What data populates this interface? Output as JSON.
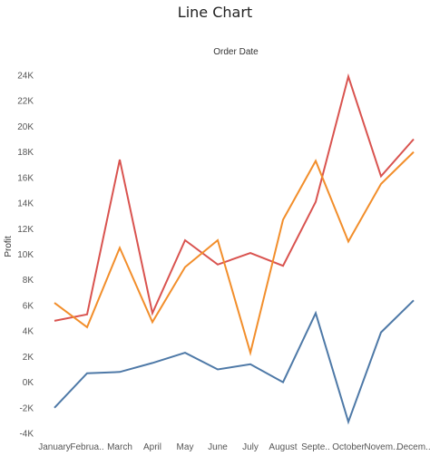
{
  "chart_data": {
    "type": "line",
    "title": "Line Chart",
    "subtitle": "Order Date",
    "xlabel": "",
    "ylabel": "Profit",
    "categories": [
      "January",
      "Februa..",
      "March",
      "April",
      "May",
      "June",
      "July",
      "August",
      "Septe..",
      "October",
      "Novem..",
      "Decem.."
    ],
    "ylim": [
      -4000,
      25000
    ],
    "yticks": [
      -4000,
      -2000,
      0,
      2000,
      4000,
      6000,
      8000,
      10000,
      12000,
      14000,
      16000,
      18000,
      20000,
      22000,
      24000
    ],
    "ytick_labels": [
      "-4K",
      "-2K",
      "0K",
      "2K",
      "4K",
      "6K",
      "8K",
      "10K",
      "12K",
      "14K",
      "16K",
      "18K",
      "20K",
      "22K",
      "24K"
    ],
    "grid": false,
    "legend": "none",
    "series": [
      {
        "color": "#d9534f",
        "values": [
          4800,
          5300,
          17400,
          5400,
          11100,
          9200,
          10100,
          9100,
          14100,
          23900,
          16100,
          19000
        ]
      },
      {
        "color": "#f28e2b",
        "values": [
          6200,
          4300,
          10500,
          4700,
          9000,
          11100,
          2300,
          12700,
          17300,
          11000,
          15500,
          18000
        ]
      },
      {
        "color": "#4e79a7",
        "values": [
          -2000,
          700,
          800,
          1500,
          2300,
          1000,
          1400,
          0,
          5400,
          -3100,
          3900,
          6400
        ]
      }
    ]
  }
}
